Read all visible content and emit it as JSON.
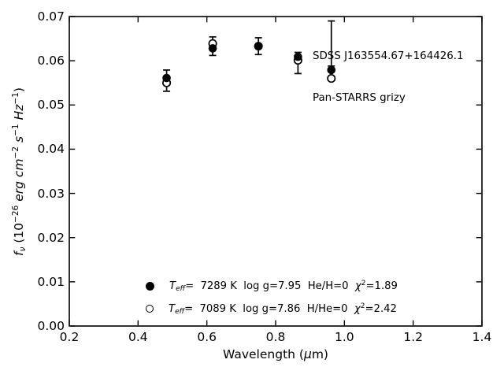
{
  "figure": {
    "background": "#ffffff",
    "foreground": "#000000"
  },
  "chart_data": {
    "type": "scatter",
    "title": "",
    "annotation": {
      "line1": "SDSS J163554.67+164426.1",
      "line2": "Pan-STARRS grizy"
    },
    "xlabel": "Wavelength (μm)",
    "ylabel": "f_ν (10⁻²⁶ erg cm⁻² s⁻¹ Hz⁻¹)",
    "xlabel_parts": [
      {
        "t": "Wavelength (",
        "s": "r"
      },
      {
        "t": "μ",
        "s": "i"
      },
      {
        "t": "m)",
        "s": "r"
      }
    ],
    "ylabel_parts": [
      {
        "t": "f",
        "s": "i"
      },
      {
        "t": "ν",
        "s": "isub"
      },
      {
        "t": " (10",
        "s": "r"
      },
      {
        "t": "−26",
        "s": "sup"
      },
      {
        "t": " erg cm",
        "s": "i"
      },
      {
        "t": "−2",
        "s": "sup"
      },
      {
        "t": " s",
        "s": "i"
      },
      {
        "t": "−1",
        "s": "sup"
      },
      {
        "t": " Hz",
        "s": "i"
      },
      {
        "t": "−1",
        "s": "sup"
      },
      {
        "t": ")",
        "s": "r"
      }
    ],
    "xlim": [
      0.2,
      1.4
    ],
    "ylim": [
      0.0,
      0.07
    ],
    "xticks": [
      0.2,
      0.4,
      0.6,
      0.8,
      1.0,
      1.2,
      1.4
    ],
    "yticks": [
      0.0,
      0.01,
      0.02,
      0.03,
      0.04,
      0.05,
      0.06,
      0.07
    ],
    "xtick_labels": [
      "0.2",
      "0.4",
      "0.6",
      "0.8",
      "1.0",
      "1.2",
      "1.4"
    ],
    "ytick_labels": [
      "0.00",
      "0.01",
      "0.02",
      "0.03",
      "0.04",
      "0.05",
      "0.06",
      "0.07"
    ],
    "grid": false,
    "tick_direction": "in",
    "x": [
      0.483,
      0.617,
      0.75,
      0.865,
      0.962
    ],
    "band_names": [
      "g",
      "r",
      "i",
      "z",
      "y"
    ],
    "series": [
      {
        "name": "He/H=0 model",
        "marker": "filled-circle",
        "values": [
          0.0561,
          0.0628,
          0.0633,
          0.0609,
          0.0579
        ]
      },
      {
        "name": "H/He=0 model",
        "marker": "open-circle",
        "values": [
          0.055,
          0.0639,
          0.0633,
          0.0601,
          0.056
        ]
      }
    ],
    "errorbars": {
      "y": [
        0.0555,
        0.0633,
        0.0633,
        0.0595,
        0.0639
      ],
      "yerr": [
        0.0024,
        0.0021,
        0.0019,
        0.0024,
        0.0051
      ]
    },
    "legend": [
      {
        "marker": "filled-circle",
        "label": "T_eff=  7289 K  log g=7.95  He/H=0  χ²=1.89",
        "parts": [
          {
            "t": "T",
            "s": "i"
          },
          {
            "t": "eff",
            "s": "isub"
          },
          {
            "t": "=  7289 K  log g=7.95  He/H=0  ",
            "s": "r"
          },
          {
            "t": "χ",
            "s": "i"
          },
          {
            "t": "2",
            "s": "sup"
          },
          {
            "t": "=1.89",
            "s": "r"
          }
        ]
      },
      {
        "marker": "open-circle",
        "label": "T_eff=  7089 K  log g=7.86  H/He=0  χ²=2.42",
        "parts": [
          {
            "t": "T",
            "s": "i"
          },
          {
            "t": "eff",
            "s": "isub"
          },
          {
            "t": "=  7089 K  log g=7.86  H/He=0  ",
            "s": "r"
          },
          {
            "t": "χ",
            "s": "i"
          },
          {
            "t": "2",
            "s": "sup"
          },
          {
            "t": "=2.42",
            "s": "r"
          }
        ]
      }
    ],
    "colors": {
      "foreground": "#000000",
      "background": "#ffffff"
    }
  }
}
